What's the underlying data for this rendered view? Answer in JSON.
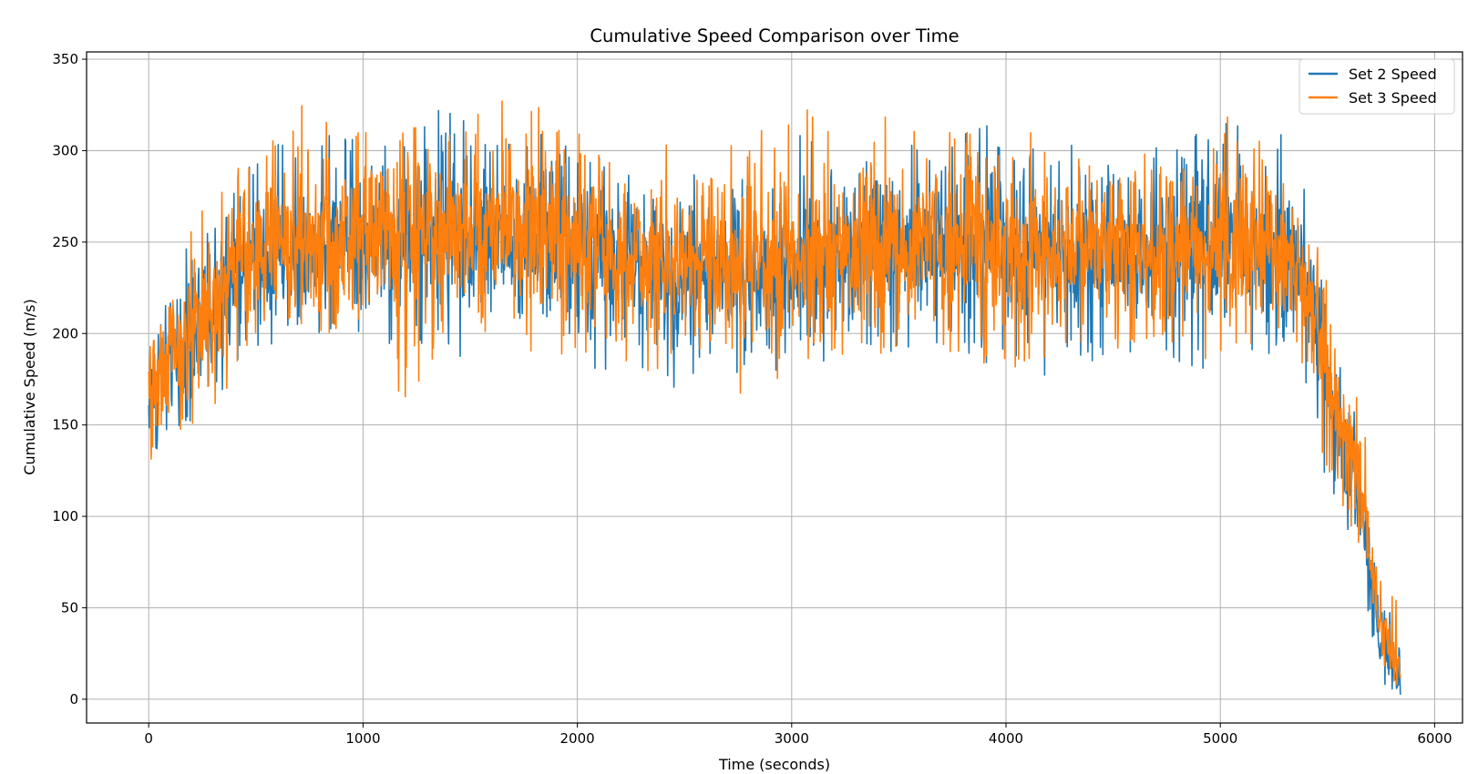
{
  "chart_data": {
    "type": "line",
    "title": "Cumulative Speed Comparison over Time",
    "xlabel": "Time (seconds)",
    "ylabel": "Cumulative Speed (m/s)",
    "xlim": [
      -290,
      6130
    ],
    "ylim": [
      -13,
      354
    ],
    "xticks": [
      0,
      1000,
      2000,
      3000,
      4000,
      5000,
      6000
    ],
    "yticks": [
      0,
      50,
      100,
      150,
      200,
      250,
      300,
      350
    ],
    "grid": true,
    "legend_position": "top-right",
    "colors": {
      "series_1": "#1f77b4",
      "series_2": "#ff7f0e",
      "grid": "#b0b0b0"
    },
    "series": [
      {
        "name": "Set 2 Speed",
        "color": "#1f77b4",
        "x": [
          0,
          50,
          100,
          200,
          300,
          400,
          500,
          600,
          700,
          800,
          1000,
          1200,
          1400,
          1600,
          1800,
          2000,
          2200,
          2400,
          2600,
          2800,
          3000,
          3200,
          3400,
          3600,
          3800,
          4000,
          4200,
          4400,
          4600,
          4800,
          5000,
          5200,
          5300,
          5380,
          5450,
          5500,
          5550,
          5600,
          5650,
          5700,
          5750,
          5800,
          5840
        ],
        "values": [
          165,
          175,
          185,
          195,
          210,
          230,
          240,
          245,
          248,
          250,
          252,
          253,
          255,
          256,
          254,
          245,
          238,
          235,
          233,
          234,
          240,
          245,
          248,
          248,
          247,
          246,
          246,
          247,
          247,
          248,
          248,
          247,
          246,
          230,
          200,
          170,
          150,
          130,
          110,
          70,
          30,
          20,
          8
        ],
        "min": [
          118,
          125,
          135,
          145,
          150,
          170,
          185,
          195,
          200,
          200,
          195,
          190,
          188,
          186,
          180,
          185,
          175,
          165,
          170,
          170,
          175,
          185,
          185,
          190,
          190,
          175,
          175,
          185,
          185,
          185,
          175,
          185,
          195,
          170,
          145,
          115,
          105,
          90,
          70,
          40,
          10,
          5,
          2
        ],
        "max": [
          195,
          205,
          235,
          250,
          265,
          280,
          300,
          305,
          315,
          310,
          305,
          312,
          330,
          320,
          315,
          310,
          290,
          295,
          290,
          300,
          310,
          305,
          302,
          308,
          320,
          312,
          300,
          310,
          305,
          310,
          325,
          315,
          310,
          290,
          250,
          220,
          190,
          175,
          150,
          115,
          75,
          55,
          30
        ]
      },
      {
        "name": "Set 3 Speed",
        "color": "#ff7f0e",
        "x": [
          0,
          50,
          100,
          200,
          300,
          400,
          500,
          600,
          700,
          800,
          1000,
          1200,
          1400,
          1600,
          1800,
          2000,
          2200,
          2400,
          2600,
          2800,
          3000,
          3200,
          3400,
          3600,
          3800,
          4000,
          4200,
          4400,
          4600,
          4800,
          5000,
          5200,
          5300,
          5380,
          5450,
          5500,
          5550,
          5600,
          5650,
          5700,
          5750,
          5800,
          5840
        ],
        "values": [
          170,
          180,
          190,
          200,
          215,
          235,
          245,
          248,
          252,
          253,
          255,
          256,
          258,
          258,
          256,
          248,
          240,
          237,
          236,
          236,
          242,
          247,
          250,
          250,
          249,
          248,
          248,
          249,
          249,
          250,
          250,
          249,
          248,
          235,
          205,
          178,
          158,
          138,
          118,
          80,
          40,
          28,
          10
        ],
        "min": [
          128,
          132,
          145,
          150,
          158,
          175,
          195,
          200,
          205,
          200,
          198,
          162,
          192,
          190,
          188,
          188,
          180,
          178,
          175,
          162,
          180,
          188,
          188,
          185,
          180,
          180,
          180,
          188,
          188,
          188,
          185,
          188,
          200,
          180,
          150,
          120,
          110,
          98,
          80,
          50,
          18,
          10,
          3
        ],
        "max": [
          205,
          245,
          255,
          275,
          270,
          290,
          300,
          312,
          338,
          335,
          310,
          315,
          320,
          332,
          325,
          310,
          295,
          305,
          300,
          305,
          330,
          310,
          322,
          315,
          310,
          328,
          300,
          310,
          305,
          310,
          320,
          315,
          312,
          295,
          258,
          230,
          200,
          180,
          160,
          130,
          90,
          70,
          40
        ]
      }
    ]
  }
}
